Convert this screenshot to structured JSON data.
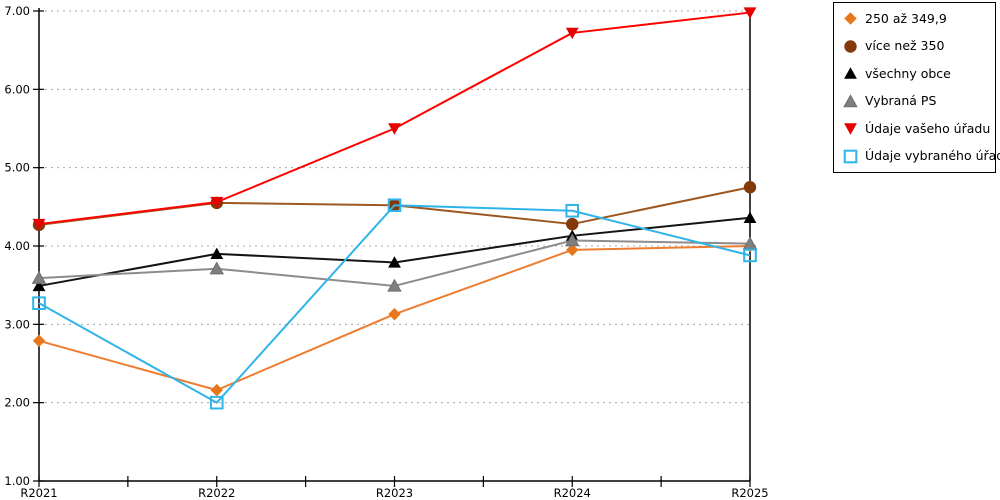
{
  "chart_data": {
    "type": "line",
    "title": "",
    "xlabel": "",
    "ylabel": "",
    "categories": [
      "R2021",
      "R2022",
      "R2023",
      "R2024",
      "R2025"
    ],
    "y_ticks": [
      "1.00",
      "2.00",
      "3.00",
      "4.00",
      "5.00",
      "6.00",
      "7.00"
    ],
    "ylim": [
      1,
      7
    ],
    "grid": "horizontal-dotted",
    "legend_position": "top-right",
    "colors": {
      "axis": "#000000",
      "gridline": "#a8a8a8",
      "background": "#ffffff"
    },
    "series": [
      {
        "name": "250 až 349,9",
        "marker": "diamond",
        "line_color": "#ED7D31",
        "marker_color": "#E8761B",
        "values": [
          2.79,
          2.16,
          3.13,
          3.95,
          4.0
        ]
      },
      {
        "name": "více než 350",
        "marker": "circle",
        "line_color": "#9C5720",
        "marker_color": "#84390B",
        "values": [
          4.27,
          4.55,
          4.52,
          4.28,
          4.75
        ]
      },
      {
        "name": "všechny obce",
        "marker": "triangle-up",
        "line_color": "#141414",
        "marker_color": "#000000",
        "values": [
          3.49,
          3.9,
          3.79,
          4.13,
          4.36
        ]
      },
      {
        "name": "Vybraná PS",
        "marker": "triangle-up",
        "line_color": "#8C8C8C",
        "marker_color": "#7F7F7F",
        "values": [
          3.59,
          3.71,
          3.49,
          4.07,
          4.03
        ]
      },
      {
        "name": "Údaje vašeho úřadu",
        "marker": "triangle-down",
        "line_color": "#FF0000",
        "marker_color": "#E60000",
        "values": [
          4.28,
          4.56,
          5.5,
          6.72,
          6.98
        ]
      },
      {
        "name": "Údaje vybraného úřadu",
        "marker": "square-open",
        "line_color": "#2FB4E9",
        "marker_color": "#2FB4E9",
        "values": [
          3.27,
          2.0,
          4.52,
          4.45,
          3.88
        ]
      }
    ]
  }
}
